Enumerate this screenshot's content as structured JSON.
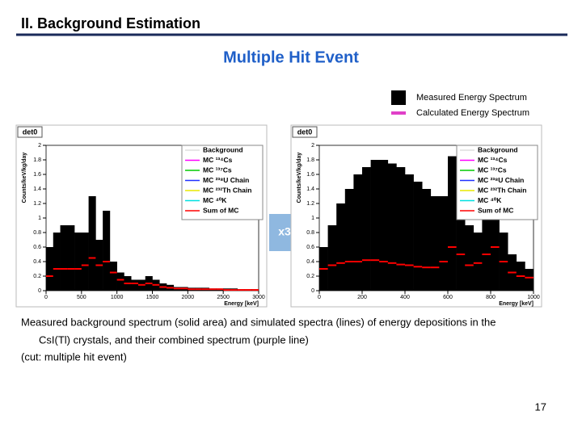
{
  "header": {
    "title": "II. Background Estimation"
  },
  "subtitle": "Multiple Hit Event",
  "legend": [
    {
      "label": "Measured Energy Spectrum",
      "color": "#000000"
    },
    {
      "label": "Calculated Energy Spectrum",
      "color": "#e040c8"
    }
  ],
  "arrow_label": "x3",
  "plots": [
    {
      "tag": "det0",
      "xlabel": "Energy [keV]",
      "ylabel": "Counts/keV/kg/day",
      "xlim": [
        0,
        3000
      ],
      "xticks": [
        0,
        500,
        1000,
        1500,
        2000,
        2500,
        3000
      ],
      "ylim": [
        0,
        2
      ],
      "yticks": [
        0,
        0.2,
        0.4,
        0.6,
        0.8,
        1,
        1.2,
        1.4,
        1.6,
        1.8,
        2
      ],
      "legend_entries": [
        {
          "label": "Background",
          "color": "#dddddd"
        },
        {
          "label": "MC ¹³⁴Cs",
          "color": "#ff00ff"
        },
        {
          "label": "MC ¹³⁷Cs",
          "color": "#00cc00"
        },
        {
          "label": "MC ²³⁸U Chain",
          "color": "#2030ff"
        },
        {
          "label": "MC ²³²Th Chain",
          "color": "#e8e800"
        },
        {
          "label": "MC ⁴⁰K",
          "color": "#00e0e0"
        },
        {
          "label": "Sum of MC",
          "color": "#ff0000"
        }
      ],
      "bins": [
        0,
        100,
        200,
        300,
        400,
        500,
        600,
        700,
        800,
        900,
        1000,
        1100,
        1200,
        1300,
        1400,
        1500,
        1600,
        1700,
        1800,
        1900,
        2000,
        2100,
        2200,
        2300,
        2400,
        2500,
        2600,
        2700,
        2800,
        2900,
        3000
      ],
      "measured": [
        0.6,
        0.8,
        0.9,
        0.9,
        0.8,
        0.8,
        1.3,
        0.7,
        1.1,
        0.4,
        0.25,
        0.2,
        0.15,
        0.15,
        0.2,
        0.15,
        0.1,
        0.08,
        0.05,
        0.05,
        0.04,
        0.04,
        0.04,
        0.03,
        0.03,
        0.03,
        0.03,
        0.02,
        0.02,
        0.02
      ],
      "sum_mc": [
        0.2,
        0.3,
        0.3,
        0.3,
        0.3,
        0.35,
        0.45,
        0.35,
        0.4,
        0.25,
        0.15,
        0.1,
        0.1,
        0.08,
        0.1,
        0.08,
        0.05,
        0.04,
        0.03,
        0.03,
        0.02,
        0.02,
        0.02,
        0.02,
        0.02,
        0.01,
        0.01,
        0.01,
        0.01,
        0.01
      ]
    },
    {
      "tag": "det0",
      "xlabel": "Energy [keV]",
      "ylabel": "Counts/keV/kg/day",
      "xlim": [
        0,
        1000
      ],
      "xticks": [
        0,
        200,
        400,
        600,
        800,
        1000
      ],
      "ylim": [
        0,
        2
      ],
      "yticks": [
        0,
        0.2,
        0.4,
        0.6,
        0.8,
        1,
        1.2,
        1.4,
        1.6,
        1.8,
        2
      ],
      "legend_entries": [
        {
          "label": "Background",
          "color": "#dddddd"
        },
        {
          "label": "MC ¹³⁴Cs",
          "color": "#ff00ff"
        },
        {
          "label": "MC ¹³⁷Cs",
          "color": "#00cc00"
        },
        {
          "label": "MC ²³⁸U Chain",
          "color": "#2030ff"
        },
        {
          "label": "MC ²³²Th Chain",
          "color": "#e8e800"
        },
        {
          "label": "MC ⁴⁰K",
          "color": "#00e0e0"
        },
        {
          "label": "Sum of MC",
          "color": "#ff0000"
        }
      ],
      "bins": [
        0,
        40,
        80,
        120,
        160,
        200,
        240,
        280,
        320,
        360,
        400,
        440,
        480,
        520,
        560,
        600,
        640,
        680,
        720,
        760,
        800,
        840,
        880,
        920,
        960,
        1000
      ],
      "measured": [
        0.6,
        0.9,
        1.2,
        1.4,
        1.6,
        1.7,
        1.8,
        1.8,
        1.75,
        1.7,
        1.6,
        1.5,
        1.4,
        1.3,
        1.3,
        1.85,
        1.4,
        0.9,
        0.8,
        1.0,
        1.1,
        0.8,
        0.5,
        0.4,
        0.3
      ],
      "sum_mc": [
        0.3,
        0.35,
        0.38,
        0.4,
        0.4,
        0.42,
        0.42,
        0.4,
        0.38,
        0.36,
        0.35,
        0.33,
        0.32,
        0.32,
        0.4,
        0.6,
        0.5,
        0.35,
        0.38,
        0.5,
        0.6,
        0.4,
        0.25,
        0.2,
        0.18
      ]
    }
  ],
  "caption": [
    "Measured background spectrum (solid area) and simulated spectra (lines) of energy depositions in the",
    "CsI(Tl) crystals, and their combined spectrum (purple line)",
    "(cut: multiple hit event)"
  ],
  "page_number": "17"
}
